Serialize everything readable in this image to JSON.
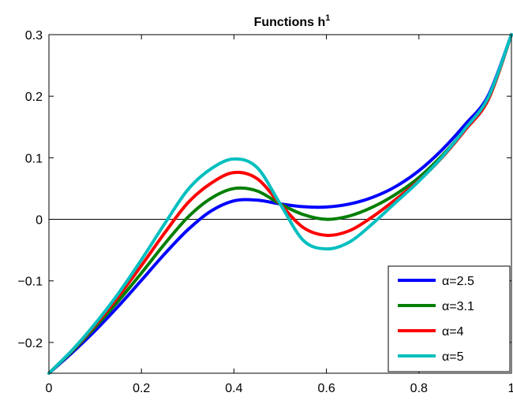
{
  "chart_data": {
    "type": "line",
    "title": "Functions h",
    "title_superscript": "1",
    "xlabel": "",
    "ylabel": "",
    "xlim": [
      0,
      1
    ],
    "ylim": [
      -0.25,
      0.3
    ],
    "x_ticks": [
      0,
      0.2,
      0.4,
      0.6,
      0.8,
      1
    ],
    "x_tick_labels": [
      "0",
      "0.2",
      "0.4",
      "0.6",
      "0.8",
      "1"
    ],
    "y_ticks": [
      -0.2,
      -0.1,
      0,
      0.1,
      0.2,
      0.3
    ],
    "y_tick_labels": [
      "−0.2",
      "−0.1",
      "0",
      "0.1",
      "0.2",
      "0.3"
    ],
    "grid": false,
    "zero_line": true,
    "legend_position": "bottom-right",
    "x": [
      0,
      0.05,
      0.1,
      0.15,
      0.2,
      0.25,
      0.3,
      0.35,
      0.4,
      0.45,
      0.5,
      0.55,
      0.6,
      0.65,
      0.7,
      0.75,
      0.8,
      0.85,
      0.9,
      0.95,
      1
    ],
    "series": [
      {
        "name": "α=2.5",
        "color": "#0000ff",
        "values": [
          -0.25,
          -0.2168,
          -0.1807,
          -0.1412,
          -0.099,
          -0.0563,
          -0.0172,
          0.0132,
          0.03,
          0.0312,
          0.025,
          0.0205,
          0.02,
          0.0249,
          0.0358,
          0.0534,
          0.079,
          0.1129,
          0.1541,
          0.2011,
          0.3
        ]
      },
      {
        "name": "α=3.1",
        "color": "#007f00",
        "values": [
          -0.25,
          -0.2145,
          -0.1752,
          -0.1328,
          -0.0872,
          -0.0401,
          0.0031,
          0.0339,
          0.05,
          0.0461,
          0.025,
          0.0077,
          0.0,
          0.0055,
          0.0199,
          0.0408,
          0.068,
          0.1035,
          0.1462,
          0.1946,
          0.3
        ]
      },
      {
        "name": "α=4",
        "color": "#ff0000",
        "values": [
          -0.25,
          -0.2134,
          -0.1718,
          -0.1257,
          -0.0751,
          -0.0223,
          0.0265,
          0.0583,
          0.076,
          0.0661,
          0.025,
          -0.0134,
          -0.026,
          -0.0184,
          0.0043,
          0.0325,
          0.063,
          0.1004,
          0.1451,
          0.1949,
          0.3
        ]
      },
      {
        "name": "α=5",
        "color": "#00bfbf",
        "values": [
          -0.25,
          -0.2128,
          -0.1695,
          -0.1206,
          -0.0657,
          -0.0075,
          0.0478,
          0.0818,
          0.098,
          0.0842,
          0.025,
          -0.0342,
          -0.048,
          -0.0368,
          -0.0069,
          0.0275,
          0.062,
          0.1012,
          0.1474,
          0.1983,
          0.3
        ]
      }
    ]
  }
}
